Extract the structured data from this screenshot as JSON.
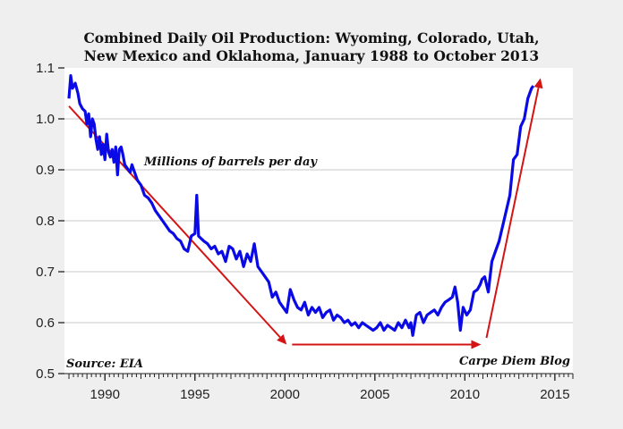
{
  "chart_data": {
    "type": "line",
    "title": "Combined Daily Oil Production: Wyoming, Colorado, Utah, New Mexico and Oklahoma, January 1988 to October 2013",
    "title_lines": [
      "Combined Daily Oil Production: Wyoming, Colorado, Utah,",
      "New Mexico and Oklahoma, January 1988 to October 2013"
    ],
    "xlabel": "",
    "ylabel": "Millions of barrels per day",
    "xlim": [
      1987.75,
      2016
    ],
    "ylim": [
      0.5,
      1.1
    ],
    "x_ticks": [
      1990,
      1995,
      2000,
      2005,
      2010,
      2015
    ],
    "x_tick_labels": [
      "1990",
      "1995",
      "2000",
      "2005",
      "2010",
      "2015"
    ],
    "y_ticks": [
      0.5,
      0.6,
      0.7,
      0.8,
      0.9,
      1.0,
      1.1
    ],
    "y_tick_labels": [
      "0.5",
      "0.6",
      "0.7",
      "0.8",
      "0.9",
      "1.0",
      "1.1"
    ],
    "grid": "horizontal",
    "annotations": {
      "units": "Millions of barrels per day",
      "source": "Source: EIA",
      "credit": "Carpe Diem Blog"
    },
    "colors": {
      "series": "#0a0ae6",
      "arrows": "#d41414",
      "grid": "#c8c8c8",
      "plot_bg": "#ffffff",
      "page_bg": "#efefef"
    },
    "series": [
      {
        "name": "Combined Daily Oil Production",
        "x": [
          1988.0,
          1988.1,
          1988.2,
          1988.35,
          1988.5,
          1988.6,
          1988.75,
          1988.9,
          1989.0,
          1989.1,
          1989.2,
          1989.3,
          1989.4,
          1989.5,
          1989.6,
          1989.7,
          1989.8,
          1989.9,
          1990.0,
          1990.1,
          1990.2,
          1990.3,
          1990.4,
          1990.5,
          1990.6,
          1990.7,
          1990.8,
          1990.9,
          1991.0,
          1991.1,
          1991.2,
          1991.3,
          1991.4,
          1991.5,
          1991.6,
          1991.7,
          1991.8,
          1991.9,
          1992.0,
          1992.2,
          1992.4,
          1992.6,
          1992.8,
          1993.0,
          1993.2,
          1993.4,
          1993.6,
          1993.8,
          1994.0,
          1994.2,
          1994.4,
          1994.6,
          1994.8,
          1995.0,
          1995.1,
          1995.2,
          1995.35,
          1995.5,
          1995.7,
          1995.9,
          1996.1,
          1996.3,
          1996.5,
          1996.7,
          1996.9,
          1997.1,
          1997.3,
          1997.5,
          1997.7,
          1997.9,
          1998.1,
          1998.3,
          1998.5,
          1998.7,
          1998.9,
          1999.1,
          1999.3,
          1999.5,
          1999.7,
          1999.9,
          2000.1,
          2000.3,
          2000.5,
          2000.7,
          2000.9,
          2001.1,
          2001.3,
          2001.5,
          2001.7,
          2001.9,
          2002.1,
          2002.3,
          2002.5,
          2002.7,
          2002.9,
          2003.1,
          2003.3,
          2003.5,
          2003.7,
          2003.9,
          2004.1,
          2004.3,
          2004.5,
          2004.7,
          2004.9,
          2005.1,
          2005.3,
          2005.5,
          2005.7,
          2005.9,
          2006.1,
          2006.3,
          2006.5,
          2006.7,
          2006.9,
          2007.0,
          2007.1,
          2007.3,
          2007.5,
          2007.7,
          2007.9,
          2008.1,
          2008.3,
          2008.5,
          2008.7,
          2008.9,
          2009.1,
          2009.3,
          2009.45,
          2009.6,
          2009.75,
          2009.9,
          2010.1,
          2010.3,
          2010.5,
          2010.7,
          2010.85,
          2010.95,
          2011.1,
          2011.3,
          2011.5,
          2011.7,
          2011.9,
          2012.1,
          2012.3,
          2012.5,
          2012.7,
          2012.9,
          2013.1,
          2013.3,
          2013.5,
          2013.7,
          2013.8
        ],
        "values": [
          1.04,
          1.085,
          1.06,
          1.07,
          1.05,
          1.03,
          1.02,
          1.015,
          0.99,
          1.01,
          0.965,
          1.0,
          0.99,
          0.96,
          0.94,
          0.965,
          0.93,
          0.95,
          0.92,
          0.97,
          0.935,
          0.925,
          0.94,
          0.915,
          0.945,
          0.89,
          0.94,
          0.945,
          0.93,
          0.91,
          0.905,
          0.9,
          0.895,
          0.91,
          0.9,
          0.89,
          0.88,
          0.875,
          0.87,
          0.85,
          0.845,
          0.835,
          0.82,
          0.81,
          0.8,
          0.79,
          0.78,
          0.775,
          0.765,
          0.76,
          0.745,
          0.74,
          0.77,
          0.775,
          0.85,
          0.77,
          0.765,
          0.76,
          0.755,
          0.745,
          0.75,
          0.735,
          0.74,
          0.72,
          0.75,
          0.745,
          0.725,
          0.74,
          0.71,
          0.735,
          0.72,
          0.755,
          0.71,
          0.7,
          0.69,
          0.68,
          0.65,
          0.66,
          0.64,
          0.63,
          0.62,
          0.665,
          0.645,
          0.63,
          0.625,
          0.64,
          0.615,
          0.63,
          0.62,
          0.63,
          0.61,
          0.62,
          0.625,
          0.605,
          0.615,
          0.61,
          0.6,
          0.605,
          0.595,
          0.6,
          0.59,
          0.6,
          0.595,
          0.59,
          0.585,
          0.59,
          0.6,
          0.585,
          0.595,
          0.59,
          0.585,
          0.6,
          0.59,
          0.605,
          0.59,
          0.6,
          0.575,
          0.615,
          0.62,
          0.6,
          0.615,
          0.62,
          0.625,
          0.615,
          0.63,
          0.64,
          0.645,
          0.65,
          0.67,
          0.64,
          0.585,
          0.63,
          0.615,
          0.625,
          0.66,
          0.665,
          0.675,
          0.685,
          0.69,
          0.66,
          0.72,
          0.74,
          0.76,
          0.79,
          0.82,
          0.85,
          0.92,
          0.93,
          0.985,
          1.0,
          1.04,
          1.06,
          1.065
        ]
      }
    ],
    "arrows": [
      {
        "name": "decline-arrow",
        "from": [
          1988.0,
          1.025
        ],
        "to": [
          2000.1,
          0.557
        ]
      },
      {
        "name": "flat-arrow",
        "from": [
          2000.4,
          0.557
        ],
        "to": [
          2010.9,
          0.557
        ]
      },
      {
        "name": "rise-arrow",
        "from": [
          2011.2,
          0.57
        ],
        "to": [
          2014.2,
          1.08
        ]
      }
    ]
  }
}
